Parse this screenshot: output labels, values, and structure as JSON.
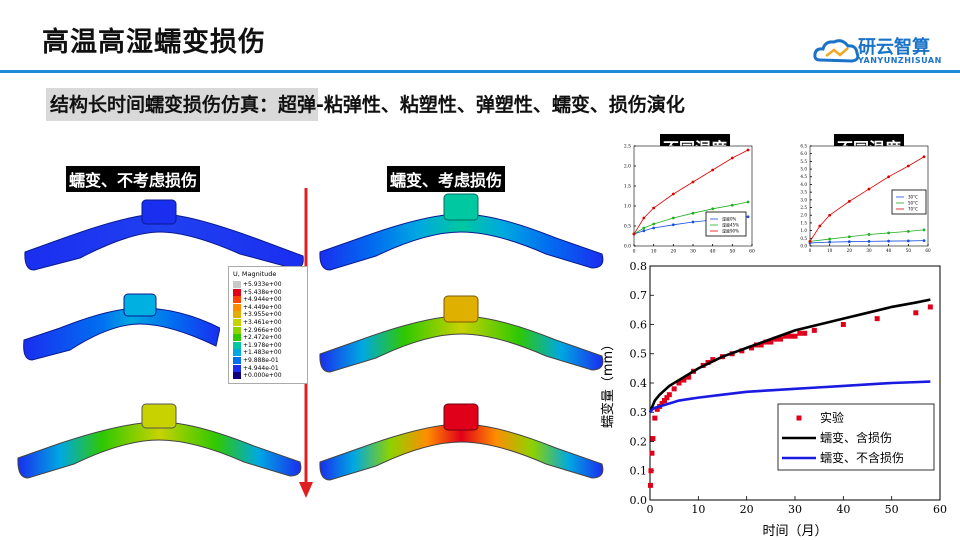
{
  "header": {
    "title": "高温高湿蠕变损伤",
    "logo_text": "研云智算",
    "logo_sub": "YANYUNZHISUAN"
  },
  "subtitle": "结构长时间蠕变损伤仿真：超弹-粘弹性、粘塑性、弹塑性、蠕变、损伤演化",
  "labels": {
    "no_damage": "蠕变、不考虑损伤",
    "with_damage": "蠕变、考虑损伤",
    "humidity": "不同湿度",
    "temperature": "不同温度"
  },
  "legend": {
    "title": "U, Magnitude",
    "entries": [
      "+5.933e+00",
      "+5.438e+00",
      "+4.944e+00",
      "+4.449e+00",
      "+3.955e+00",
      "+3.461e+00",
      "+2.966e+00",
      "+2.472e+00",
      "+1.978e+00",
      "+1.483e+00",
      "+9.888e-01",
      "+4.944e-01",
      "+0.000e+00"
    ],
    "colors": [
      "#c8c8c8",
      "#e0001a",
      "#ff4500",
      "#ff8c00",
      "#e0b000",
      "#c8d200",
      "#8ed200",
      "#30c800",
      "#00c8a0",
      "#00a8e0",
      "#0070f0",
      "#1a2ef0",
      "#10007a"
    ]
  },
  "chart_data": [
    {
      "type": "scatter",
      "xlabel": "时间（月）",
      "ylabel": "蠕变量（mm）",
      "xlim": [
        0,
        60
      ],
      "ylim": [
        0,
        0.8
      ],
      "xticks": [
        0,
        10,
        20,
        30,
        40,
        50,
        60
      ],
      "yticks": [
        0.0,
        0.1,
        0.2,
        0.3,
        0.4,
        0.5,
        0.6,
        0.7,
        0.8
      ],
      "legend_position": "lower-right",
      "series": [
        {
          "name": "实验",
          "style": "markers",
          "color": "#e0001a",
          "x": [
            0.1,
            0.2,
            0.4,
            0.6,
            1,
            1.5,
            2,
            2.5,
            3,
            3.5,
            4,
            5,
            6,
            7,
            8,
            9,
            11,
            12,
            13,
            15,
            17,
            19,
            21,
            22,
            23,
            24,
            25,
            26,
            27,
            28,
            29,
            30,
            31,
            32,
            34,
            40,
            47,
            55,
            58
          ],
          "y": [
            0.05,
            0.1,
            0.16,
            0.21,
            0.28,
            0.31,
            0.32,
            0.33,
            0.34,
            0.35,
            0.36,
            0.38,
            0.4,
            0.41,
            0.42,
            0.44,
            0.46,
            0.47,
            0.48,
            0.49,
            0.5,
            0.51,
            0.52,
            0.53,
            0.53,
            0.54,
            0.54,
            0.55,
            0.55,
            0.56,
            0.56,
            0.56,
            0.57,
            0.57,
            0.58,
            0.6,
            0.62,
            0.64,
            0.66
          ]
        },
        {
          "name": "蠕变、含损伤",
          "style": "line",
          "color": "#000000",
          "x": [
            0,
            0.5,
            1,
            2,
            4,
            6,
            8,
            10,
            15,
            20,
            25,
            30,
            35,
            40,
            45,
            50,
            55,
            58
          ],
          "y": [
            0.3,
            0.32,
            0.34,
            0.36,
            0.39,
            0.41,
            0.43,
            0.45,
            0.49,
            0.52,
            0.55,
            0.58,
            0.6,
            0.62,
            0.64,
            0.66,
            0.675,
            0.685
          ]
        },
        {
          "name": "蠕变、不含损伤",
          "style": "line",
          "color": "#1a1ae0",
          "x": [
            0,
            0.5,
            1,
            2,
            4,
            6,
            8,
            10,
            15,
            20,
            25,
            30,
            35,
            40,
            45,
            50,
            55,
            58
          ],
          "y": [
            0.3,
            0.31,
            0.315,
            0.32,
            0.33,
            0.34,
            0.345,
            0.35,
            0.36,
            0.37,
            0.375,
            0.38,
            0.385,
            0.39,
            0.395,
            0.4,
            0.403,
            0.405
          ]
        }
      ]
    },
    {
      "type": "line",
      "title": "不同湿度",
      "xlim": [
        0,
        60
      ],
      "ylim": [
        0,
        2.5
      ],
      "xticks": [
        0,
        10,
        20,
        30,
        40,
        50,
        60
      ],
      "yticks": [
        0,
        0.5,
        1.0,
        1.5,
        2.0,
        2.5
      ],
      "series": [
        {
          "name": "湿度0%",
          "color": "#1a4fe0",
          "x": [
            0,
            5,
            10,
            20,
            30,
            40,
            50,
            58
          ],
          "y": [
            0.3,
            0.38,
            0.45,
            0.53,
            0.6,
            0.65,
            0.7,
            0.73
          ]
        },
        {
          "name": "湿度45%",
          "color": "#20b020",
          "x": [
            0,
            5,
            10,
            20,
            30,
            40,
            50,
            58
          ],
          "y": [
            0.3,
            0.45,
            0.55,
            0.7,
            0.82,
            0.93,
            1.02,
            1.1
          ]
        },
        {
          "name": "湿度90%",
          "color": "#e00000",
          "x": [
            0,
            5,
            10,
            20,
            30,
            40,
            50,
            58
          ],
          "y": [
            0.3,
            0.7,
            0.95,
            1.3,
            1.6,
            1.9,
            2.2,
            2.4
          ]
        }
      ]
    },
    {
      "type": "line",
      "title": "不同温度",
      "xlim": [
        0,
        60
      ],
      "ylim": [
        0,
        6.5
      ],
      "xticks": [
        0,
        10,
        20,
        30,
        40,
        50,
        60
      ],
      "yticks": [
        0,
        0.5,
        1.0,
        1.5,
        2.0,
        2.5,
        3.0,
        3.5,
        4.0,
        4.5,
        5.0,
        5.5,
        6.0,
        6.5
      ],
      "series": [
        {
          "name": "30°C",
          "color": "#1a4fe0",
          "x": [
            0,
            10,
            20,
            30,
            40,
            50,
            58
          ],
          "y": [
            0.2,
            0.25,
            0.28,
            0.3,
            0.32,
            0.33,
            0.35
          ]
        },
        {
          "name": "50°C",
          "color": "#20b020",
          "x": [
            0,
            10,
            20,
            30,
            40,
            50,
            58
          ],
          "y": [
            0.3,
            0.45,
            0.6,
            0.75,
            0.85,
            0.95,
            1.05
          ]
        },
        {
          "name": "70°C",
          "color": "#e00000",
          "x": [
            0,
            5,
            10,
            20,
            30,
            40,
            50,
            58
          ],
          "y": [
            0.3,
            1.3,
            2.0,
            2.9,
            3.7,
            4.5,
            5.2,
            5.8
          ]
        }
      ]
    }
  ]
}
